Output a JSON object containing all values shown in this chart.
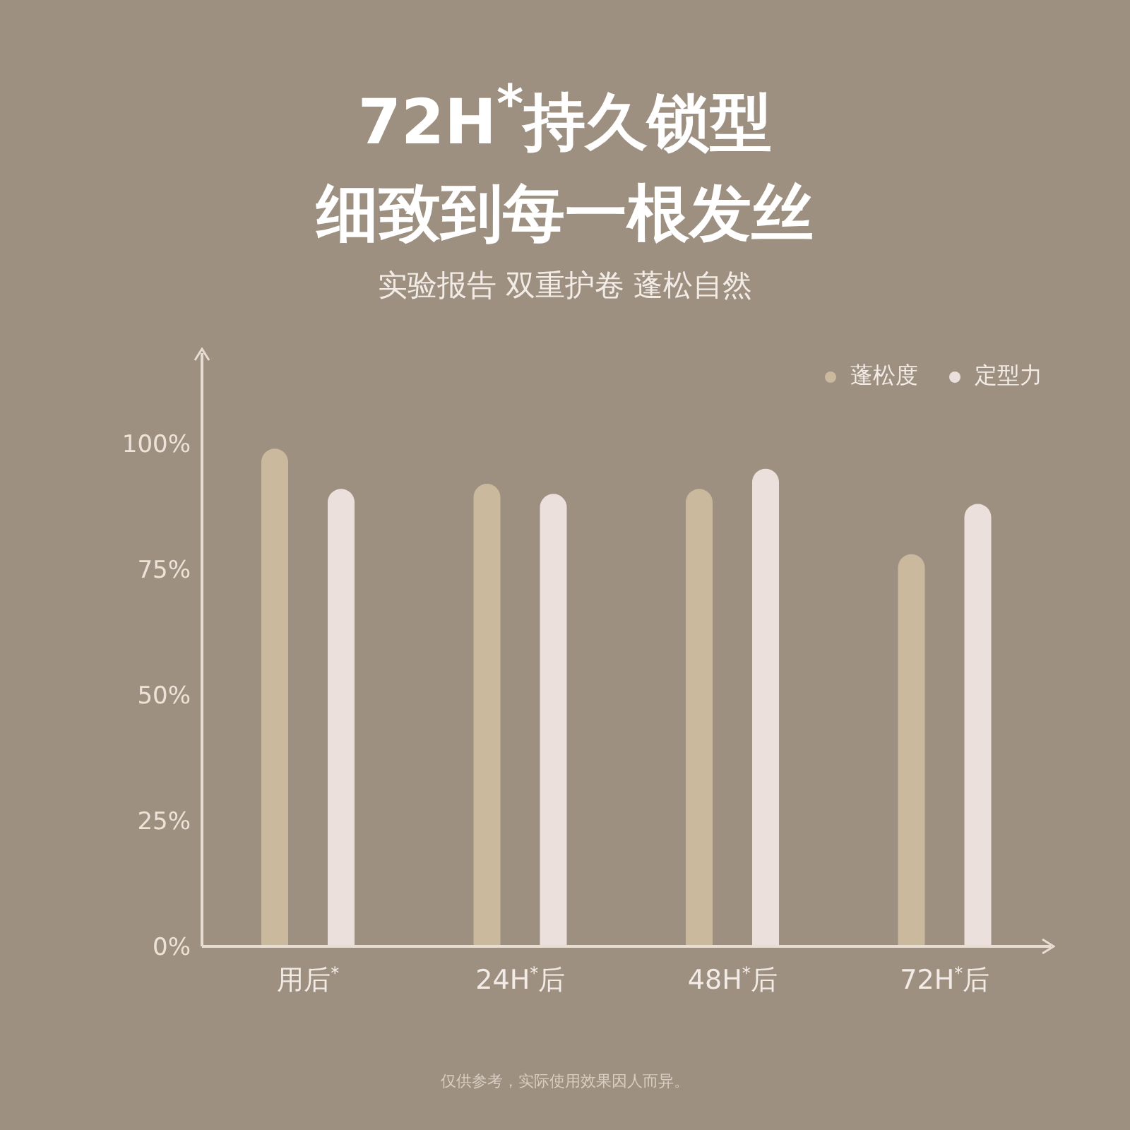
{
  "chart_data": {
    "type": "bar",
    "title": "72H$^{*}$持久锁型",
    "subtitle": "细致到每一根发丝",
    "categories": [
      "用后$^{*}$",
      "24H$^{*}$后",
      "48H$^{*}$后",
      "72H$^{*}$后"
    ],
    "series": [
      {
        "name": "蓬松度",
        "color": "#cbb99e",
        "values": [
          99,
          92,
          91,
          78
        ]
      },
      {
        "name": "定型力",
        "color": "#ebe0dc",
        "values": [
          91,
          90,
          95,
          88
        ]
      }
    ],
    "ylim": [
      0,
      118
    ],
    "yticks": [
      {
        "value": 0,
        "label": "0%"
      },
      {
        "value": 25,
        "label": "25%"
      },
      {
        "value": 50,
        "label": "50%"
      },
      {
        "value": 75,
        "label": "75%"
      },
      {
        "value": 100,
        "label": "100%"
      }
    ],
    "grid": false,
    "legend": "top right",
    "annotations": [
      "实验报告 双重护卷 蓬松自然",
      "仅供参考，实际使用效果因人而异。"
    ]
  }
}
